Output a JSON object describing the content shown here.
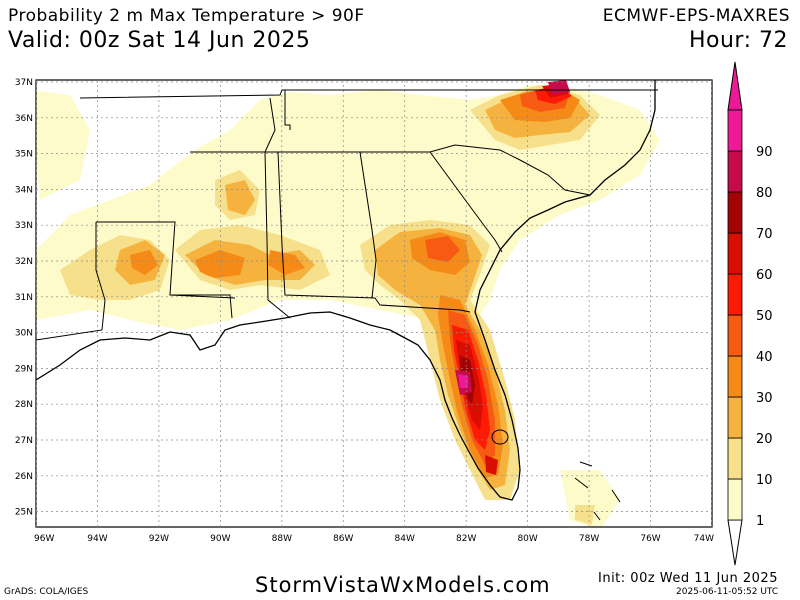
{
  "header": {
    "title": "Probability 2 m Max Temperature > 90F",
    "valid": "Valid: 00z Sat 14 Jun 2025",
    "model": "ECMWF-EPS-MAXRES",
    "hour": "Hour: 72"
  },
  "map": {
    "lat_labels": [
      "37N",
      "36N",
      "35N",
      "34N",
      "33N",
      "32N",
      "31N",
      "30N",
      "29N",
      "28N",
      "27N",
      "26N",
      "25N"
    ],
    "lon_labels": [
      "96W",
      "94W",
      "92W",
      "90W",
      "88W",
      "86W",
      "84W",
      "82W",
      "80W",
      "78W",
      "76W",
      "74W"
    ],
    "lat_values": [
      37,
      36,
      35,
      34,
      33,
      32,
      31,
      30,
      29,
      28,
      27,
      26,
      25
    ],
    "lon_values": [
      96,
      94,
      92,
      90,
      88,
      86,
      84,
      82,
      80,
      78,
      76,
      74
    ],
    "colorbar": {
      "labels": [
        "1",
        "10",
        "20",
        "30",
        "40",
        "50",
        "60",
        "70",
        "80",
        "90"
      ],
      "colors": [
        "#fdfbc9",
        "#f7e08c",
        "#f5b23e",
        "#f58a16",
        "#f75a13",
        "#ff1a05",
        "#d80e03",
        "#a50303",
        "#c60a4a",
        "#ee1996"
      ]
    }
  },
  "footer": {
    "brand": "StormVistaWxModels.com",
    "grads": "GrADS: COLA/IGES",
    "init": "Init: 00z Wed 11 Jun 2025",
    "stamp": "2025-06-11-05:52 UTC"
  }
}
